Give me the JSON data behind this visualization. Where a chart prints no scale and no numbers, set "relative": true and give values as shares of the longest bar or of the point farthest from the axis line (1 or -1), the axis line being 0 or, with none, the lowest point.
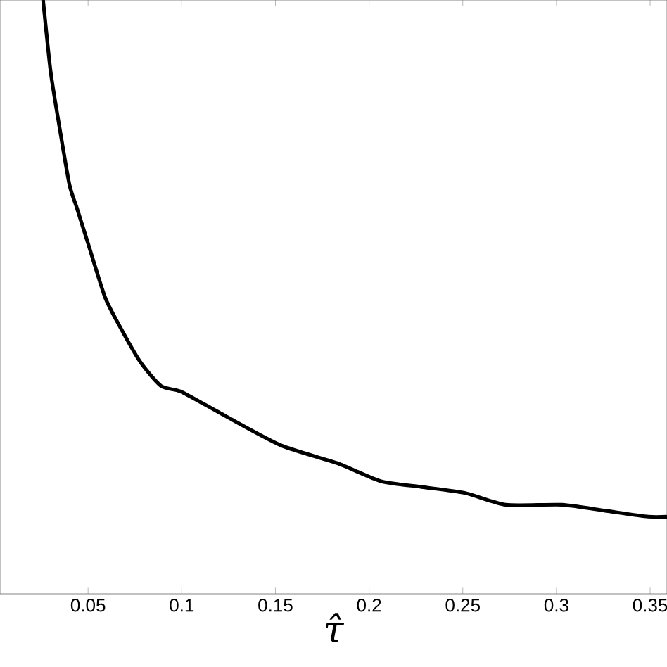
{
  "chart_data": {
    "type": "line",
    "xlabel": "τ̂",
    "relative": true,
    "color": "#000000",
    "x": [
      0.026,
      0.03,
      0.034,
      0.04,
      0.044,
      0.05,
      0.059,
      0.067,
      0.078,
      0.089,
      0.1,
      0.123,
      0.153,
      0.183,
      0.206,
      0.228,
      0.251,
      0.273,
      0.303,
      0.326,
      0.349,
      0.359
    ],
    "values": [
      1.0,
      0.88,
      0.8,
      0.69,
      0.65,
      0.59,
      0.5,
      0.45,
      0.39,
      0.35,
      0.34,
      0.3,
      0.25,
      0.22,
      0.19,
      0.18,
      0.17,
      0.15,
      0.15,
      0.14,
      0.13,
      0.13
    ],
    "xlim": [
      0.003,
      0.359
    ],
    "xticks": [
      0.05,
      0.1,
      0.15,
      0.2,
      0.25,
      0.3,
      0.35
    ]
  }
}
